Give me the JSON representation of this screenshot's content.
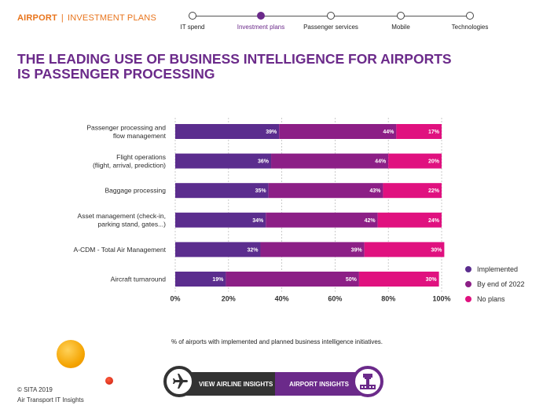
{
  "header": {
    "section": "AIRPORT",
    "separator": "|",
    "subsection": "INVESTMENT PLANS",
    "nav": [
      {
        "label": "IT spend",
        "active": false
      },
      {
        "label": "Investment plans",
        "active": true
      },
      {
        "label": "Passenger services",
        "active": false
      },
      {
        "label": "Mobile",
        "active": false
      },
      {
        "label": "Technologies",
        "active": false
      }
    ]
  },
  "title": {
    "line1": "THE LEADING USE OF BUSINESS INTELLIGENCE FOR AIRPORTS",
    "line2": "IS PASSENGER PROCESSING"
  },
  "chart_data": {
    "type": "bar",
    "orientation": "horizontal",
    "stacked": true,
    "categories": [
      [
        "Passenger processing and",
        "flow management"
      ],
      [
        "Flight operations",
        "(flight, arrival, prediction)"
      ],
      [
        "Baggage processing"
      ],
      [
        "Asset management (check-in,",
        "parking stand, gates...)"
      ],
      [
        "A-CDM - Total Air Management"
      ],
      [
        "Aircraft turnaround"
      ]
    ],
    "series": [
      {
        "name": "Implemented",
        "color": "#5b2d8e",
        "values": [
          39,
          36,
          35,
          34,
          32,
          19
        ]
      },
      {
        "name": "By end of 2022",
        "color": "#8c1f86",
        "values": [
          44,
          44,
          43,
          42,
          39,
          50
        ]
      },
      {
        "name": "No plans",
        "color": "#e0117f",
        "values": [
          17,
          20,
          22,
          24,
          30,
          30
        ]
      }
    ],
    "xlim": [
      0,
      100
    ],
    "xticks": [
      "0%",
      "20%",
      "40%",
      "60%",
      "80%",
      "100%"
    ],
    "grid": true,
    "legend_position": "bottom-right",
    "caption": "% of airports with implemented and planned business intelligence initiatives."
  },
  "footer": {
    "copyright": "© SITA 2019",
    "publication": "Air Transport IT Insights"
  },
  "buttons": {
    "airline": "VIEW AIRLINE INSIGHTS",
    "airport": "AIRPORT INSIGHTS"
  },
  "icons": {
    "airline": "airplane-icon",
    "airport": "control-tower-icon"
  }
}
